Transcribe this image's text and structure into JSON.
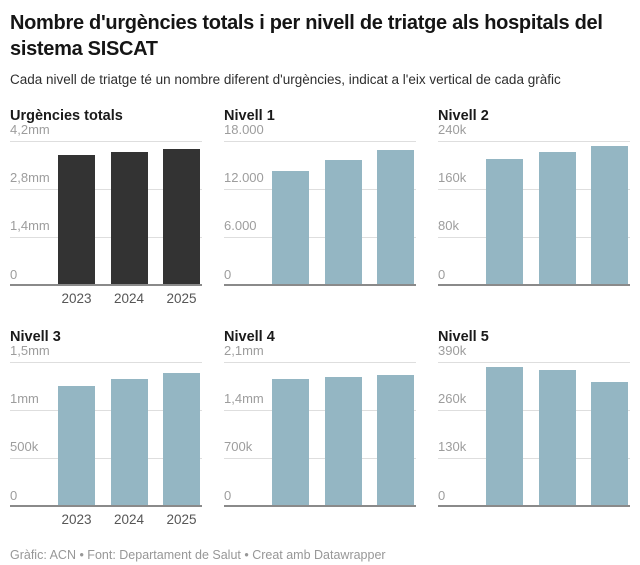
{
  "header": {
    "title": "Nombre d'urgències totals i per nivell de triatge als hospitals del sistema SISCAT",
    "subtitle": "Cada nivell de triatge té un nombre diferent d'urgències, indicat a l'eix vertical de cada gràfic"
  },
  "footer": {
    "text": "Gràfic: ACN • Font: Departament de Salut • Creat amb Datawrapper"
  },
  "colors": {
    "totals_bar": "#333333",
    "level_bar": "#94b6c3",
    "gridline": "#dedede",
    "baseline": "#8a8a8a",
    "ytick_label": "#9d9d9d",
    "xtick_label": "#565656"
  },
  "chart_data": [
    {
      "type": "bar",
      "title": "Urgències totals",
      "categories": [
        "2023",
        "2024",
        "2025"
      ],
      "values": [
        3780000,
        3880000,
        3950000
      ],
      "ymax": 4200000,
      "ylim": [
        0,
        4200000
      ],
      "ytick_labels": [
        "4,2mm",
        "2,8mm",
        "1,4mm",
        "0"
      ],
      "show_x_labels": true,
      "bar_color": "#333333",
      "grid": true,
      "legend": "none"
    },
    {
      "type": "bar",
      "title": "Nivell 1",
      "categories": [
        "2023",
        "2024",
        "2025"
      ],
      "values": [
        14200,
        15600,
        16800
      ],
      "ymax": 18000,
      "ylim": [
        0,
        18000
      ],
      "ytick_labels": [
        "18.000",
        "12.000",
        "6.000",
        "0"
      ],
      "show_x_labels": false,
      "bar_color": "#94b6c3",
      "grid": true,
      "legend": "none"
    },
    {
      "type": "bar",
      "title": "Nivell 2",
      "categories": [
        "2023",
        "2024",
        "2025"
      ],
      "values": [
        210000,
        222000,
        231000
      ],
      "ymax": 240000,
      "ylim": [
        0,
        240000
      ],
      "ytick_labels": [
        "240k",
        "160k",
        "80k",
        "0"
      ],
      "show_x_labels": false,
      "bar_color": "#94b6c3",
      "grid": true,
      "legend": "none"
    },
    {
      "type": "bar",
      "title": "Nivell 3",
      "categories": [
        "2023",
        "2024",
        "2025"
      ],
      "values": [
        1250000,
        1320000,
        1385000
      ],
      "ymax": 1500000,
      "ylim": [
        0,
        1500000
      ],
      "ytick_labels": [
        "1,5mm",
        "1mm",
        "500k",
        "0"
      ],
      "show_x_labels": true,
      "bar_color": "#94b6c3",
      "grid": true,
      "legend": "none"
    },
    {
      "type": "bar",
      "title": "Nivell 4",
      "categories": [
        "2023",
        "2024",
        "2025"
      ],
      "values": [
        1845000,
        1870000,
        1905000
      ],
      "ymax": 2100000,
      "ylim": [
        0,
        2100000
      ],
      "ytick_labels": [
        "2,1mm",
        "1,4mm",
        "700k",
        "0"
      ],
      "show_x_labels": false,
      "bar_color": "#94b6c3",
      "grid": true,
      "legend": "none"
    },
    {
      "type": "bar",
      "title": "Nivell 5",
      "categories": [
        "2023",
        "2024",
        "2025"
      ],
      "values": [
        377000,
        368000,
        335000
      ],
      "ymax": 390000,
      "ylim": [
        0,
        390000
      ],
      "ytick_labels": [
        "390k",
        "260k",
        "130k",
        "0"
      ],
      "show_x_labels": false,
      "bar_color": "#94b6c3",
      "grid": true,
      "legend": "none"
    }
  ]
}
